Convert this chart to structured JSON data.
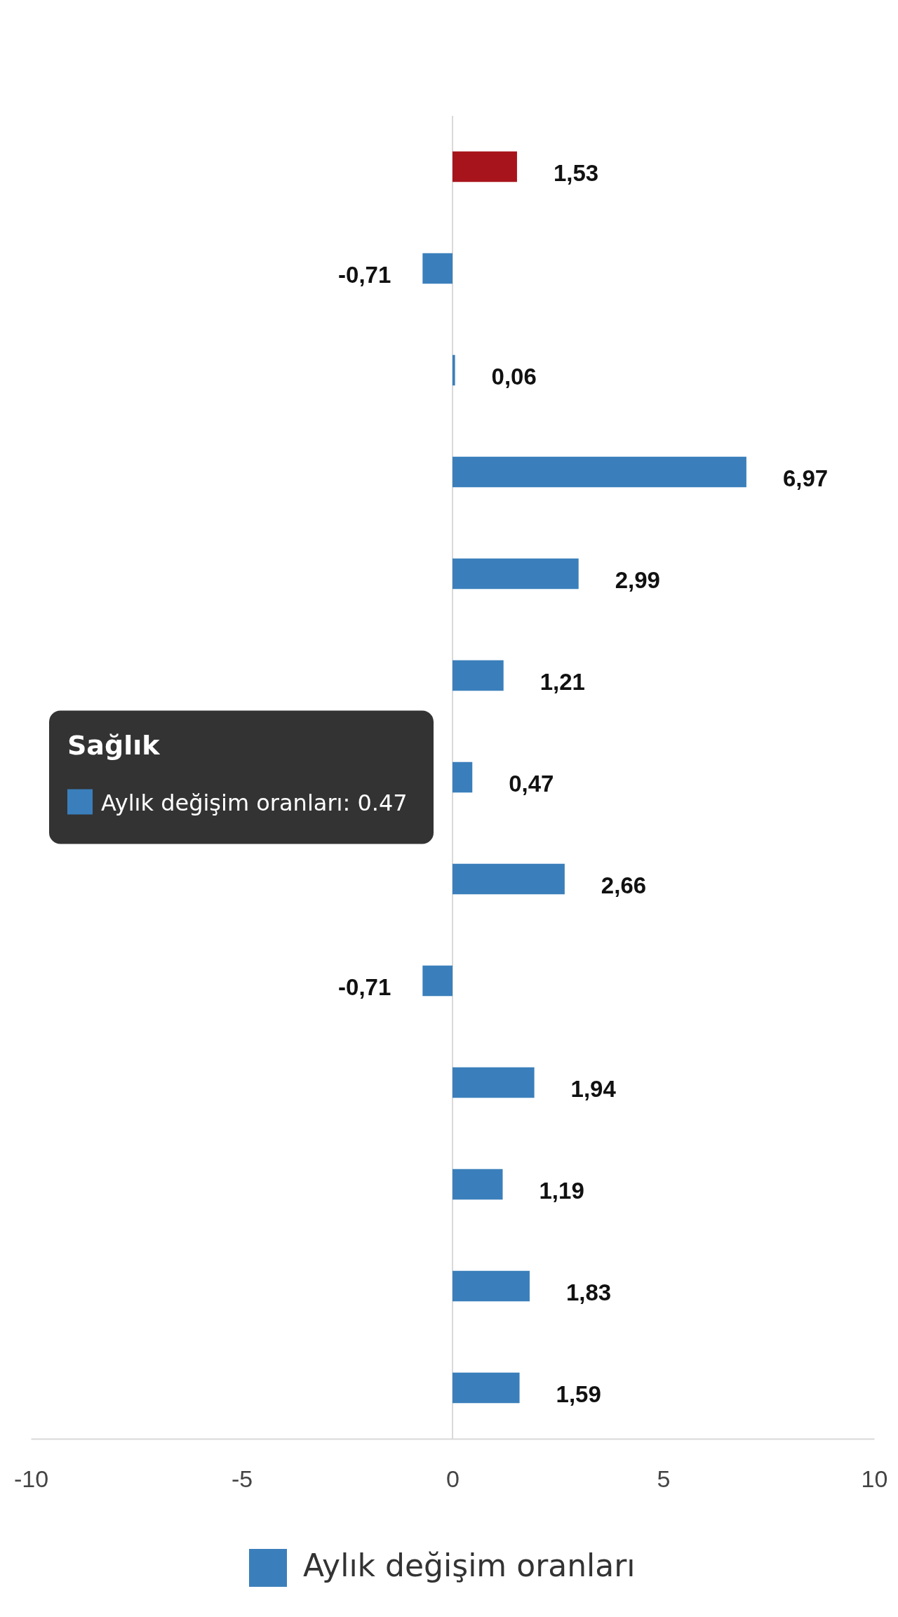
{
  "chart_data": {
    "type": "bar",
    "orientation": "horizontal",
    "categories": [
      null,
      null,
      null,
      null,
      null,
      null,
      null,
      null,
      null,
      null,
      null,
      null,
      null
    ],
    "series": [
      {
        "name": "Aylık değişim oranları",
        "color": "#3a7fbb",
        "colors": [
          "#a8141c",
          "#3a7fbb",
          "#3a7fbb",
          "#3a7fbb",
          "#3a7fbb",
          "#3a7fbb",
          "#3a7fbb",
          "#3a7fbb",
          "#3a7fbb",
          "#3a7fbb",
          "#3a7fbb",
          "#3a7fbb",
          "#3a7fbb"
        ],
        "values": [
          1.53,
          -0.71,
          0.06,
          6.97,
          2.99,
          1.21,
          0.47,
          2.66,
          -0.71,
          1.94,
          1.19,
          1.83,
          1.59
        ],
        "value_labels": [
          "1,53",
          "-0,71",
          "0,06",
          "6,97",
          "2,99",
          "1,21",
          "0,47",
          "2,66",
          "-0,71",
          "1,94",
          "1,19",
          "1,83",
          "1,59"
        ]
      }
    ],
    "xlim": [
      -10,
      10
    ],
    "xticks": [
      -10,
      -5,
      0,
      5,
      10
    ],
    "grid": false,
    "ref_lines": [
      {
        "axis": "x",
        "value": 0,
        "color": "#d9d9d9"
      }
    ],
    "legend": "bottom",
    "annotations": [
      "Sağlık",
      "Aylık değişim oranları: 0.47"
    ]
  }
}
